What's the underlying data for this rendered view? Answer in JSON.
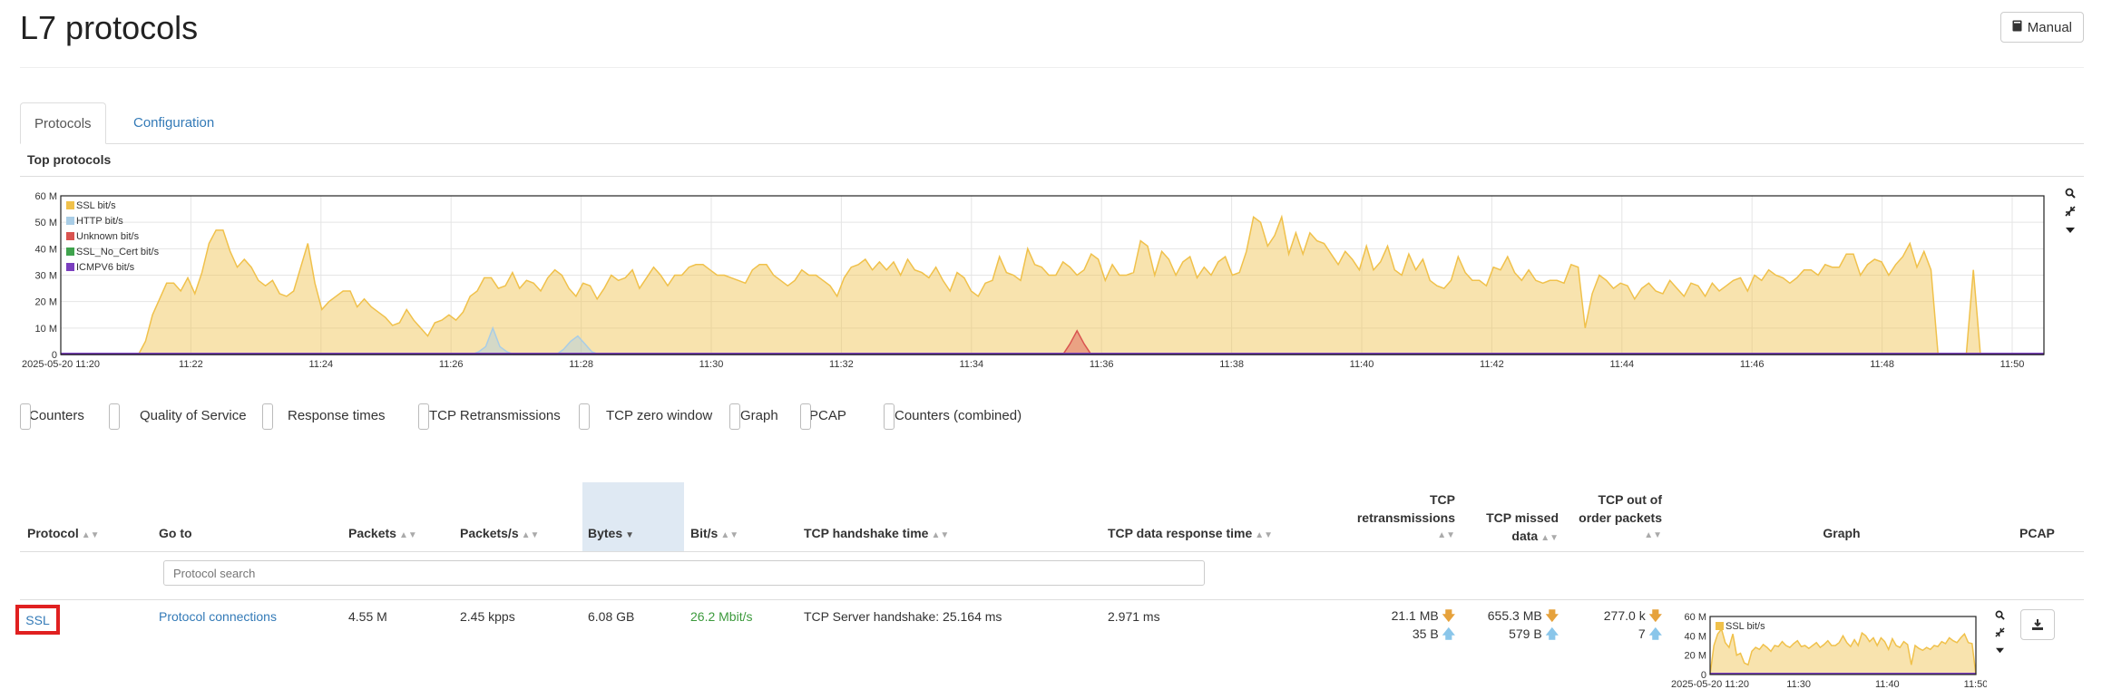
{
  "page": {
    "title": "L7 protocols",
    "manual_label": "Manual",
    "manual_icon": "book-icon"
  },
  "tabs": [
    {
      "label": "Protocols",
      "active": true
    },
    {
      "label": "Configuration",
      "active": false
    }
  ],
  "section_title": "Top protocols",
  "chart_data": [
    {
      "type": "area",
      "title": "",
      "y_ticks": [
        "0",
        "10 M",
        "20 M",
        "30 M",
        "40 M",
        "50 M",
        "60 M"
      ],
      "ylim": [
        0,
        60
      ],
      "y_unit": "M bit/s",
      "x_ticks": [
        "2025-05-20 11:20",
        "11:22",
        "11:24",
        "11:26",
        "11:28",
        "11:30",
        "11:32",
        "11:34",
        "11:36",
        "11:38",
        "11:40",
        "11:42",
        "11:44",
        "11:46",
        "11:48",
        "11:50"
      ],
      "legend_placement": "top-left",
      "grid": true,
      "series": [
        {
          "name": "SSL bit/s",
          "color": "#f0c14b",
          "values": [
            0,
            0,
            0,
            0,
            0,
            0,
            0,
            0,
            0,
            0,
            0,
            0,
            5,
            15,
            21,
            27,
            27,
            24,
            29,
            23,
            31,
            42,
            47,
            47,
            39,
            33,
            36,
            33,
            28,
            26,
            28,
            23,
            22,
            24,
            33,
            42,
            27,
            17,
            20,
            22,
            24,
            24,
            18,
            21,
            18,
            16,
            14,
            11,
            12,
            17,
            13,
            10,
            7,
            12,
            13,
            15,
            13,
            16,
            22,
            24,
            29,
            29,
            25,
            26,
            31,
            25,
            28,
            27,
            24,
            29,
            32,
            30,
            25,
            22,
            27,
            26,
            21,
            25,
            30,
            28,
            29,
            32,
            25,
            29,
            33,
            30,
            26,
            30,
            30,
            33,
            34,
            34,
            32,
            30,
            30,
            29,
            28,
            27,
            32,
            34,
            34,
            30,
            28,
            26,
            28,
            32,
            30,
            30,
            28,
            26,
            22,
            29,
            33,
            34,
            36,
            32,
            35,
            32,
            35,
            30,
            36,
            32,
            31,
            29,
            33,
            28,
            24,
            31,
            29,
            24,
            22,
            27,
            28,
            37,
            31,
            30,
            28,
            40,
            34,
            33,
            30,
            30,
            35,
            33,
            30,
            32,
            38,
            36,
            28,
            34,
            30,
            30,
            31,
            43,
            41,
            30,
            39,
            36,
            30,
            35,
            37,
            29,
            33,
            30,
            35,
            37,
            30,
            31,
            39,
            52,
            50,
            41,
            45,
            52,
            38,
            46,
            38,
            46,
            43,
            42,
            38,
            34,
            39,
            36,
            32,
            41,
            32,
            35,
            41,
            32,
            30,
            38,
            32,
            36,
            28,
            26,
            25,
            28,
            37,
            31,
            28,
            28,
            26,
            33,
            32,
            37,
            31,
            28,
            32,
            28,
            27,
            28,
            28,
            27,
            34,
            33,
            10,
            23,
            30,
            28,
            25,
            27,
            26,
            21,
            25,
            27,
            24,
            23,
            28,
            25,
            22,
            27,
            26,
            22,
            27,
            24,
            26,
            28,
            29,
            24,
            30,
            28,
            32,
            30,
            29,
            27,
            29,
            32,
            32,
            30,
            34,
            33,
            33,
            38,
            38,
            30,
            34,
            36,
            35,
            30,
            34,
            37,
            42,
            33,
            39,
            32,
            0,
            0,
            0,
            0,
            0,
            32,
            0,
            0,
            0,
            0,
            0,
            0,
            0,
            0,
            0,
            0
          ]
        },
        {
          "name": "HTTP bit/s",
          "color": "#a9cde6",
          "values": [
            0,
            0,
            0,
            0,
            0,
            0,
            0,
            0,
            0,
            0,
            0,
            0,
            0,
            0,
            0,
            0,
            0,
            0,
            0,
            0,
            0,
            0,
            0,
            0,
            0,
            0,
            0,
            0,
            0,
            0,
            0,
            0,
            0,
            0,
            0,
            0,
            0,
            0,
            0,
            0,
            0,
            0,
            0,
            0,
            0,
            0,
            0,
            0,
            0,
            0,
            0,
            0,
            0,
            0,
            0,
            0,
            0,
            0,
            0,
            1,
            3,
            10,
            3,
            1,
            0,
            0,
            0,
            0,
            0,
            0,
            0,
            2,
            5,
            7,
            4,
            1,
            0,
            0,
            0,
            0,
            0,
            0,
            0,
            0,
            0,
            0,
            0,
            0,
            0,
            0,
            0,
            0,
            0,
            0,
            0,
            0,
            0,
            0,
            0,
            0,
            0,
            0,
            0,
            0,
            0,
            0,
            0,
            0,
            0,
            0,
            0,
            0,
            0,
            0,
            0,
            0,
            0,
            0,
            0,
            0,
            0,
            0,
            0,
            0,
            0,
            0,
            0,
            0,
            0,
            0,
            0,
            0,
            0,
            0,
            0,
            0,
            0,
            0,
            0,
            0,
            0,
            0,
            0,
            0,
            0,
            0,
            0,
            0,
            0,
            0,
            0,
            0,
            0,
            0,
            0,
            0,
            0,
            0,
            0,
            0,
            0,
            0,
            0,
            0,
            0,
            0,
            0,
            0,
            0,
            0,
            0,
            0,
            0,
            0,
            0,
            0,
            0,
            0,
            0,
            0,
            0,
            0,
            0,
            0,
            0,
            0,
            0,
            0,
            0,
            0,
            0,
            0,
            0,
            0,
            0,
            0,
            0,
            0,
            0,
            0,
            0,
            0,
            0,
            0,
            0,
            0,
            0,
            0,
            0,
            0,
            0,
            0,
            0,
            0,
            0,
            0,
            0,
            0,
            0,
            0,
            0,
            0,
            0,
            0,
            0,
            0,
            0,
            0,
            0,
            0,
            0,
            0,
            0,
            0,
            0,
            0,
            0,
            0,
            0,
            0,
            0,
            0,
            0,
            0,
            0,
            0,
            0,
            0,
            0,
            0,
            0,
            0,
            0,
            0,
            0,
            0,
            0,
            0,
            0,
            0,
            0,
            0,
            0,
            0,
            0,
            0,
            0,
            0,
            0,
            0,
            0,
            0,
            0,
            0,
            0,
            0,
            0,
            0,
            0,
            0,
            0
          ]
        },
        {
          "name": "Unknown bit/s",
          "color": "#d9534f",
          "values": [
            0,
            0,
            0,
            0,
            0,
            0,
            0,
            0,
            0,
            0,
            0,
            0,
            0,
            0,
            0,
            0,
            0,
            0,
            0,
            0,
            0,
            0,
            0,
            0,
            0,
            0,
            0,
            0,
            0,
            0,
            0,
            0,
            0,
            0,
            0,
            0,
            0,
            0,
            0,
            0,
            0,
            0,
            0,
            0,
            0,
            0,
            0,
            0,
            0,
            0,
            0,
            0,
            0,
            0,
            0,
            0,
            0,
            0,
            0,
            0,
            0,
            0,
            0,
            0,
            0,
            0,
            0,
            0,
            0,
            0,
            0,
            0,
            0,
            0,
            0,
            0,
            0,
            0,
            0,
            0,
            0,
            0,
            0,
            0,
            0,
            0,
            0,
            0,
            0,
            0,
            0,
            0,
            0,
            0,
            0,
            0,
            0,
            0,
            0,
            0,
            0,
            0,
            0,
            0,
            0,
            0,
            0,
            0,
            0,
            0,
            0,
            0,
            0,
            0,
            0,
            0,
            0,
            0,
            0,
            0,
            0,
            0,
            0,
            0,
            0,
            0,
            0,
            0,
            0,
            0,
            0,
            0,
            0,
            0,
            0,
            0,
            0,
            0,
            0,
            0,
            0,
            0,
            0,
            4,
            9,
            4,
            0,
            0,
            0,
            0,
            0,
            0,
            0,
            0,
            0,
            0,
            0,
            0,
            0,
            0,
            0,
            0,
            0,
            0,
            0,
            0,
            0,
            0,
            0,
            0,
            0,
            0,
            0,
            0,
            0,
            0,
            0,
            0,
            0,
            0,
            0,
            0,
            0,
            0,
            0,
            0,
            0,
            0,
            0,
            0,
            0,
            0,
            0,
            0,
            0,
            0,
            0,
            0,
            0,
            0,
            0,
            0,
            0,
            0,
            0,
            0,
            0,
            0,
            0,
            0,
            0,
            0,
            0,
            0,
            0,
            0,
            0,
            0,
            0,
            0,
            0,
            0,
            0,
            0,
            0,
            0,
            0,
            0,
            0,
            0,
            0,
            0,
            0,
            0,
            0,
            0,
            0,
            0,
            0,
            0,
            0,
            0,
            0,
            0,
            0,
            0,
            0,
            0,
            0,
            0,
            0,
            0,
            0,
            0,
            0,
            0,
            0,
            0,
            0,
            0,
            0,
            0,
            0,
            0,
            0,
            0,
            0,
            0,
            0,
            0,
            0,
            0,
            0,
            0,
            0,
            0,
            0,
            0,
            0,
            0,
            0,
            0
          ]
        },
        {
          "name": "SSL_No_Cert bit/s",
          "color": "#3fa34d",
          "values": []
        },
        {
          "name": "ICMPV6 bit/s",
          "color": "#7b3fbf",
          "values": []
        }
      ]
    },
    {
      "type": "area",
      "title": "",
      "y_ticks": [
        "0",
        "20 M",
        "40 M",
        "60 M"
      ],
      "ylim": [
        0,
        60
      ],
      "x_ticks": [
        "2025-05-20 11:20",
        "11:30",
        "11:40",
        "11:50"
      ],
      "legend_placement": "top-left",
      "series": [
        {
          "name": "SSL bit/s",
          "color": "#f0c14b",
          "values": [
            0,
            30,
            42,
            47,
            33,
            28,
            42,
            20,
            22,
            12,
            10,
            24,
            28,
            26,
            31,
            28,
            24,
            30,
            29,
            34,
            30,
            28,
            32,
            35,
            29,
            30,
            27,
            30,
            33,
            28,
            31,
            35,
            30,
            30,
            33,
            40,
            33,
            29,
            36,
            30,
            43,
            40,
            34,
            38,
            30,
            38,
            34,
            26,
            37,
            30,
            28,
            34,
            31,
            10,
            30,
            27,
            25,
            28,
            26,
            30,
            29,
            34,
            32,
            38,
            35,
            33,
            38,
            42,
            33,
            32,
            0
          ]
        }
      ]
    }
  ],
  "buttons": [
    {
      "label": "Counters",
      "on": true
    },
    {
      "label": "Quality of Service",
      "on": false
    },
    {
      "label": "Response times",
      "on": true
    },
    {
      "label": "TCP Retransmissions",
      "on": true
    },
    {
      "label": "TCP zero window",
      "on": false
    },
    {
      "label": "Graph",
      "on": true
    },
    {
      "label": "PCAP",
      "on": true
    },
    {
      "label": "Counters (combined)",
      "on": true
    }
  ],
  "table": {
    "headers": {
      "protocol": "Protocol",
      "goto": "Go to",
      "packets": "Packets",
      "packets_s": "Packets/s",
      "bytes": "Bytes",
      "bits": "Bit/s",
      "handshake": "TCP handshake time",
      "data_resp": "TCP data response time",
      "retrans_1": "TCP",
      "retrans_2": "retransmissions",
      "missed_1": "TCP missed",
      "missed_2": "data",
      "ooo_1": "TCP out of",
      "ooo_2": "order packets",
      "graph": "Graph",
      "pcap": "PCAP"
    },
    "search_placeholder": "Protocol search",
    "row": {
      "protocol": "SSL",
      "goto": "Protocol connections",
      "packets": "4.55 M",
      "packets_s": "2.45 kpps",
      "bytes": "6.08 GB",
      "bits": "26.2 Mbit/s",
      "handshake": "TCP Server handshake: 25.164 ms",
      "data_resp": "2.971 ms",
      "retrans_down": "21.1 MB",
      "retrans_up": "35 B",
      "missed_down": "655.3 MB",
      "missed_up": "579 B",
      "ooo_down": "277.0 k",
      "ooo_up": "7"
    }
  },
  "symbols": {
    "down": "🡇",
    "up": "🡅",
    "sort": "▲▼",
    "sort_desc": "▼",
    "book": "📖",
    "download": "⭳"
  }
}
